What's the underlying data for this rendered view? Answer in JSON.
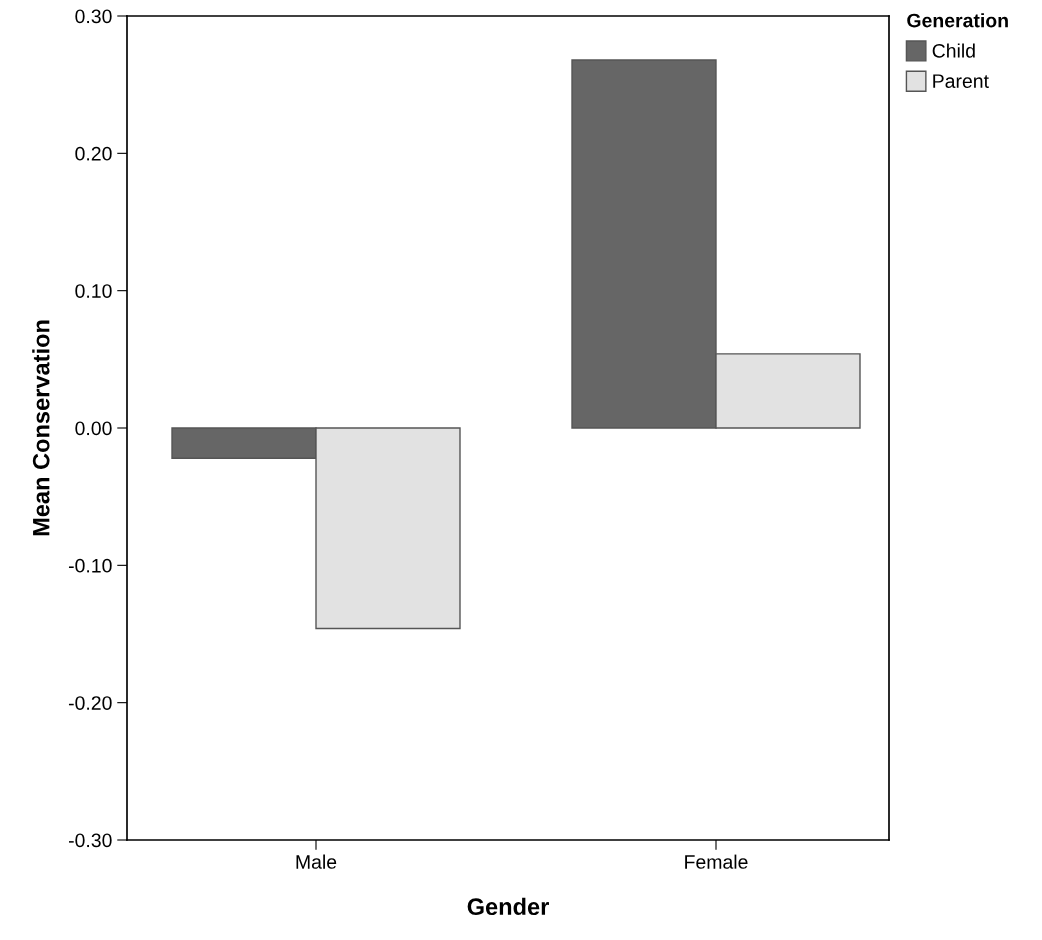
{
  "chart_data": {
    "type": "bar",
    "xlabel": "Gender",
    "ylabel": "Mean Conservation",
    "legend_title": "Generation",
    "categories": [
      "Male",
      "Female"
    ],
    "series": [
      {
        "name": "Child",
        "color": "#666666",
        "values": [
          -0.022,
          0.268
        ]
      },
      {
        "name": "Parent",
        "color": "#e2e2e2",
        "values": [
          -0.146,
          0.054
        ]
      }
    ],
    "ylim": [
      -0.3,
      0.3
    ],
    "yticks": [
      {
        "value": -0.3,
        "label": "-0.30"
      },
      {
        "value": -0.2,
        "label": "-0.20"
      },
      {
        "value": -0.1,
        "label": "-0.10"
      },
      {
        "value": 0,
        "label": "0.00"
      },
      {
        "value": 0.1,
        "label": "0.10"
      },
      {
        "value": 0.2,
        "label": "0.20"
      },
      {
        "value": 0.3,
        "label": "0.30"
      }
    ],
    "grid": false,
    "legend": "top right"
  }
}
